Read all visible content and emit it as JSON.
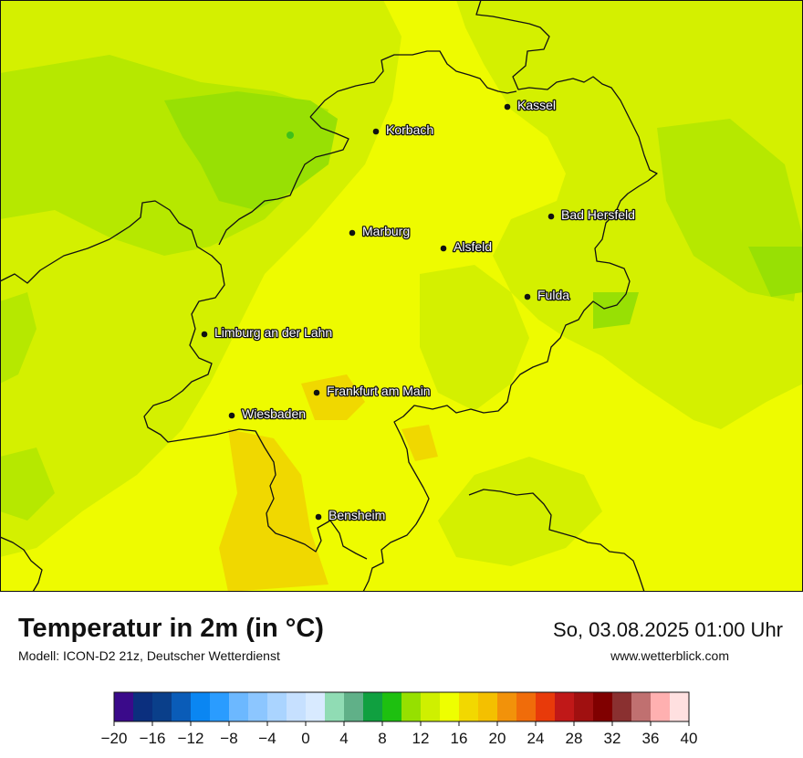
{
  "map": {
    "colors": {
      "base": "#eefb00",
      "warm_yellow_green": "#d4f000",
      "light_green": "#b6e800",
      "green": "#98e004",
      "dark_green": "#3fc01a",
      "orange_yellow": "#f0d800",
      "border": "#111111",
      "city_dot": "#111111",
      "label_text": "#ffffff"
    },
    "cities": [
      {
        "name": "Kassel"
      },
      {
        "name": "Korbach"
      },
      {
        "name": "Bad Hersfeld"
      },
      {
        "name": "Marburg"
      },
      {
        "name": "Alsfeld"
      },
      {
        "name": "Fulda"
      },
      {
        "name": "Limburg an der Lahn"
      },
      {
        "name": "Frankfurt am Main"
      },
      {
        "name": "Wiesbaden"
      },
      {
        "name": "Bensheim"
      }
    ]
  },
  "footer": {
    "title": "Temperatur in 2m (in °C)",
    "subtitle": "Modell: ICON-D2 21z, Deutscher Wetterdienst",
    "datetime": "So, 03.08.2025 01:00 Uhr",
    "website": "www.wetterblick.com"
  },
  "colorbar": {
    "colors": [
      "#3a0a8a",
      "#0b2f7e",
      "#0a3f8a",
      "#0a5cb8",
      "#0a86f2",
      "#2a9cff",
      "#6cb8ff",
      "#8cc6ff",
      "#aad4ff",
      "#c6e0ff",
      "#d8eaff",
      "#90dcb4",
      "#60b088",
      "#10a040",
      "#1ec010",
      "#96e000",
      "#cff000",
      "#eeff00",
      "#f2d800",
      "#f4c000",
      "#f2920a",
      "#f06c0a",
      "#e83a0a",
      "#c01818",
      "#a01010",
      "#800000",
      "#8a3030",
      "#c07070",
      "#ffb0b0",
      "#ffe0e0"
    ],
    "tick_labels": [
      "−20",
      "−16",
      "−12",
      "−8",
      "−4",
      "0",
      "4",
      "8",
      "12",
      "16",
      "20",
      "24",
      "28",
      "32",
      "36",
      "40"
    ]
  }
}
